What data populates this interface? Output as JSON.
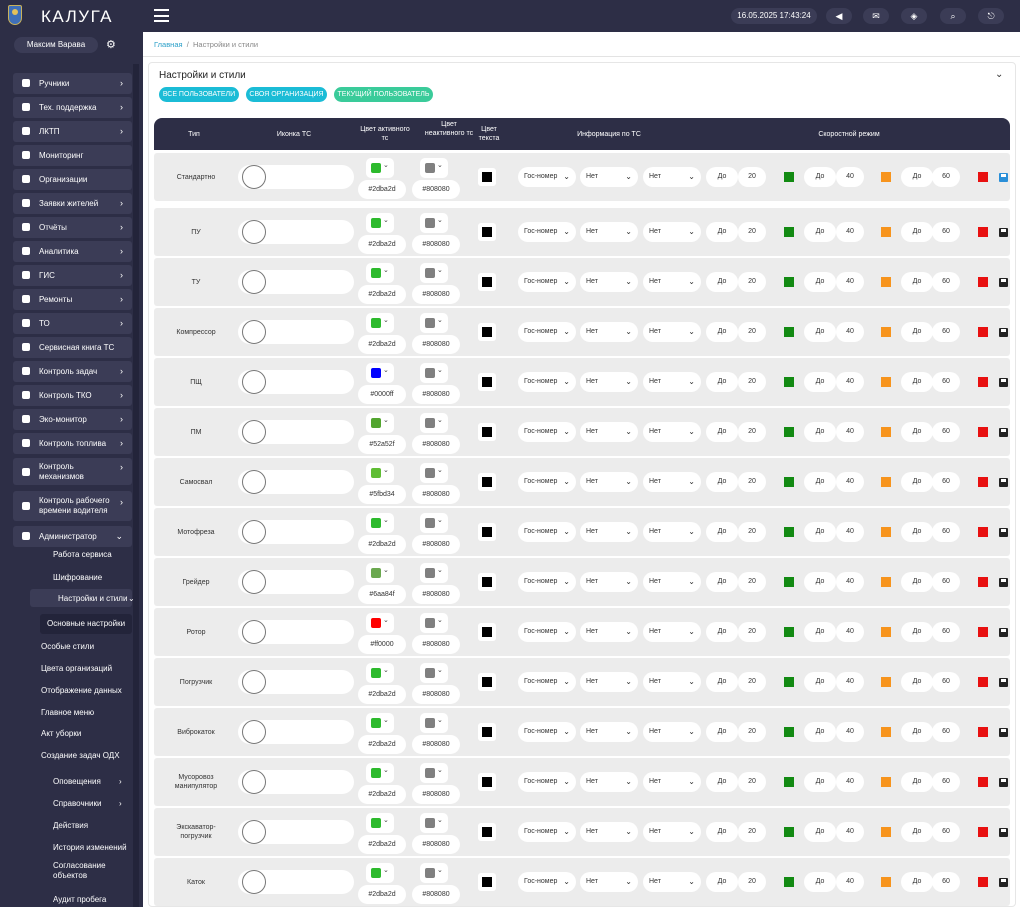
{
  "app": {
    "title": "КАЛУГА",
    "datetime": "16.05.2025 17:43:24"
  },
  "topbar": {
    "icons": [
      "megaphone-icon",
      "mail-icon",
      "layers-icon",
      "search-icon",
      "logout-icon"
    ]
  },
  "user": {
    "name": "Максим Варава"
  },
  "sidebar": {
    "items": [
      {
        "label": "Ручники",
        "icon": "hand-icon",
        "arrow": "›"
      },
      {
        "label": "Тех. поддержка",
        "icon": "person-icon",
        "arrow": "›"
      },
      {
        "label": "ЛКТП",
        "icon": "gear-icon",
        "arrow": "›"
      },
      {
        "label": "Мониторинг",
        "icon": "eye-icon",
        "arrow": ""
      },
      {
        "label": "Организации",
        "icon": "building-icon",
        "arrow": ""
      },
      {
        "label": "Заявки жителей",
        "icon": "group-icon",
        "arrow": "›"
      },
      {
        "label": "Отчёты",
        "icon": "document-icon",
        "arrow": "›"
      },
      {
        "label": "Аналитика",
        "icon": "chart-icon",
        "arrow": "›"
      },
      {
        "label": "ГИС",
        "icon": "map-icon",
        "arrow": "›"
      },
      {
        "label": "Ремонты",
        "icon": "wrench-icon",
        "arrow": "›"
      },
      {
        "label": "ТО",
        "icon": "pin-icon",
        "arrow": "›"
      },
      {
        "label": "Сервисная книга ТС",
        "icon": "book-icon",
        "arrow": ""
      },
      {
        "label": "Контроль задач",
        "icon": "search-icon",
        "arrow": "›"
      },
      {
        "label": "Контроль ТКО",
        "icon": "clock-icon",
        "arrow": "›"
      },
      {
        "label": "Эко-монитор",
        "icon": "cloud-icon",
        "arrow": "›"
      },
      {
        "label": "Контроль топлива",
        "icon": "fuel-icon",
        "arrow": "›"
      },
      {
        "label": "Контроль механизмов",
        "icon": "gear-icon",
        "arrow": "›"
      },
      {
        "label": "Контроль рабочего времени водителя",
        "icon": "gear-icon",
        "arrow": "›"
      },
      {
        "label": "Администратор",
        "icon": "tools-icon",
        "arrow": "⌄"
      }
    ],
    "sub": [
      "Работа сервиса",
      "Шифрование",
      "Настройки и стили",
      "Основные настройки",
      "Особые стили",
      "Цвета организаций",
      "Отображение данных",
      "Главное меню",
      "Акт уборки",
      "Создание задач ОДХ",
      "Оповещения",
      "Справочники",
      "Действия",
      "История изменений",
      "Согласование объектов",
      "Аудит пробега"
    ]
  },
  "breadcrumb": {
    "home": "Главная",
    "sep": "/",
    "current": "Настройки и стили"
  },
  "card": {
    "title": "Настройки и стили"
  },
  "filters": [
    "ВСЕ ПОЛЬЗОВАТЕЛИ",
    "СВОЯ ОРГАНИЗАЦИЯ",
    "ТЕКУЩИЙ ПОЛЬЗОВАТЕЛЬ"
  ],
  "table": {
    "headers": {
      "type": "Тип",
      "icon": "Иконка ТС",
      "active": "Цвет активного тс",
      "inactive": "Цвет неактивного тс",
      "text": "Цвет текста",
      "info": "Информация по ТС",
      "speed": "Скоростной режим"
    },
    "defaults": {
      "info1": "Гос-номер",
      "info2": "Нет",
      "info3": "Нет",
      "do": "До",
      "speed1": "20",
      "speed2": "40",
      "speed3": "60",
      "inactive_color": "#808080"
    },
    "speed_colors": [
      "#128a12",
      "#f7941d",
      "#e81010"
    ],
    "rows": [
      {
        "type": "Стандартно",
        "icon": "truck-icon",
        "active": "#2dba2d"
      },
      {
        "type": "ПУ",
        "icon": "truck-icon",
        "active": "#2dba2d"
      },
      {
        "type": "ТУ",
        "icon": "tractor-icon",
        "active": "#2dba2d"
      },
      {
        "type": "Компрессор",
        "icon": "truck-icon",
        "active": "#2dba2d"
      },
      {
        "type": "ПЩ",
        "icon": "truck-icon",
        "active": "#0000ff"
      },
      {
        "type": "ПМ",
        "icon": "truck-icon",
        "active": "#52a52f"
      },
      {
        "type": "Самосвал",
        "icon": "truck-icon",
        "active": "#5fbd34"
      },
      {
        "type": "Мотофреза",
        "icon": "truck-icon",
        "active": "#2dba2d"
      },
      {
        "type": "Грейдер",
        "icon": "grader-icon",
        "active": "#6aa84f"
      },
      {
        "type": "Ротор",
        "icon": "truck-icon",
        "active": "#ff0000"
      },
      {
        "type": "Погрузчик",
        "icon": "truck-icon",
        "active": "#2dba2d"
      },
      {
        "type": "Виброкаток",
        "icon": "truck-icon",
        "active": "#2dba2d"
      },
      {
        "type": "Мусоровоз манипулятор",
        "icon": "truck-icon",
        "active": "#2dba2d"
      },
      {
        "type": "Экскаватор-погрузчик",
        "icon": "truck-icon",
        "active": "#2dba2d"
      },
      {
        "type": "Каток",
        "icon": "truck-icon",
        "active": "#2dba2d"
      }
    ]
  }
}
